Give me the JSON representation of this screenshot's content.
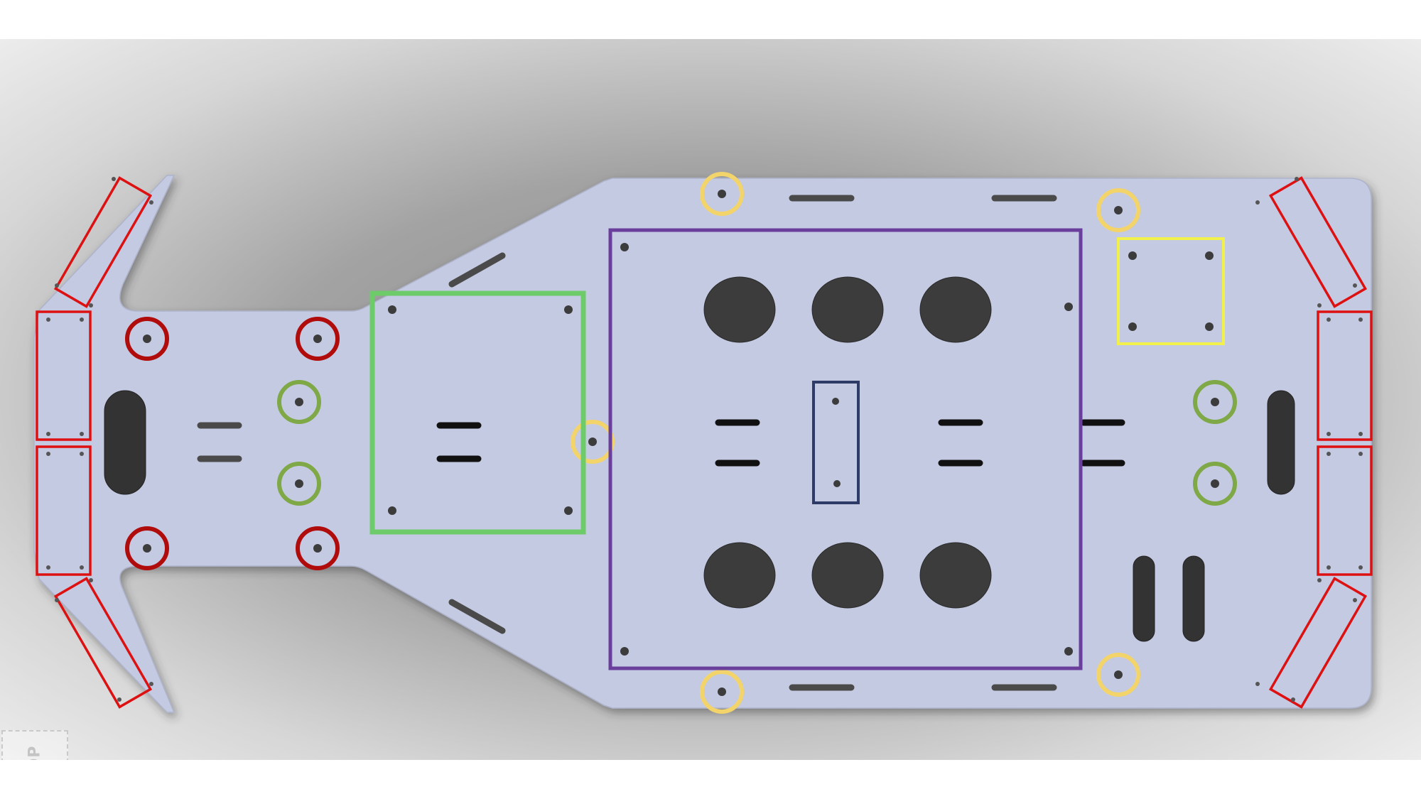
{
  "viewport": {
    "background": "#a3a3a3",
    "view_cube_label": "TOP"
  },
  "model": {
    "plate_color": "#c5cae3",
    "hole_color": "#3c3c3c",
    "slot_color": "#1f1f1f"
  },
  "highlight_colors": {
    "sensor_mount": "#dd1111",
    "standoff_mount": "#b00c0c",
    "small_mount": "#7fa847",
    "board_area_green": "#6dcb6a",
    "board_area_purple": "#6a3f9c",
    "small_board_navy": "#2e3b66",
    "small_board_yellow": "#f2f04a",
    "corner_mount": "#f2d46a"
  },
  "icons": [
    "view-cube-icon"
  ]
}
